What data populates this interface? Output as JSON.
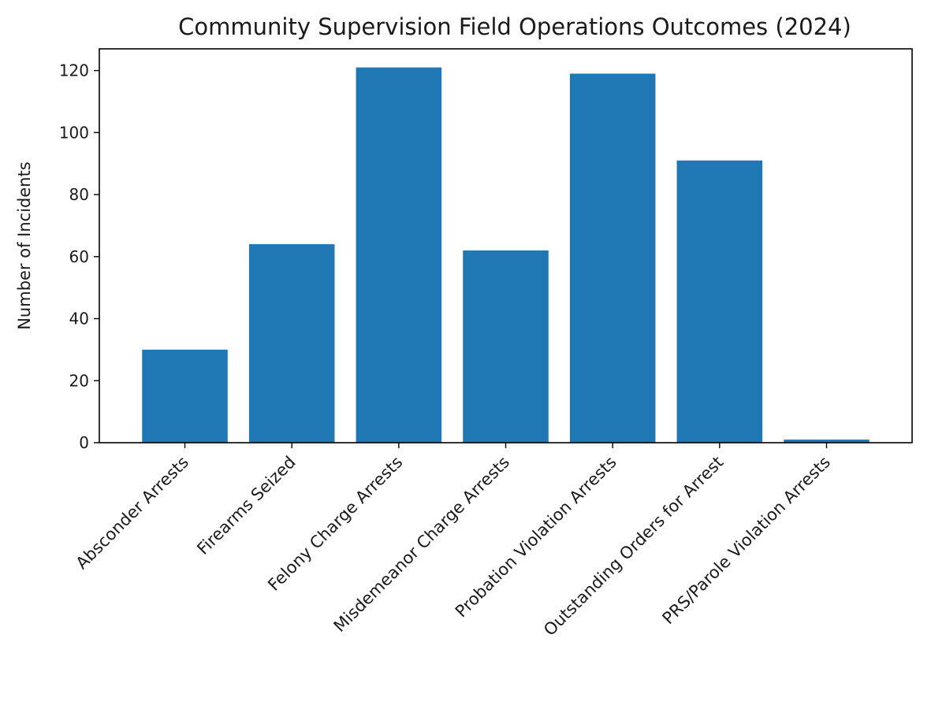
{
  "chart_data": {
    "type": "bar",
    "title": "Community Supervision Field Operations Outcomes (2024)",
    "xlabel": "",
    "ylabel": "Number of Incidents",
    "categories": [
      "Absconder Arrests",
      "Firearms Seized",
      "Felony Charge Arrests",
      "Misdemeanor Charge Arrests",
      "Probation Violation Arrests",
      "Outstanding Orders for Arrest",
      "PRS/Parole Violation Arrests"
    ],
    "values": [
      30,
      64,
      121,
      62,
      119,
      91,
      1
    ],
    "ylim": [
      0,
      127
    ],
    "yticks": [
      0,
      20,
      40,
      60,
      80,
      100,
      120
    ],
    "bar_color": "#1f77b4",
    "grid": false,
    "legend": "none"
  }
}
